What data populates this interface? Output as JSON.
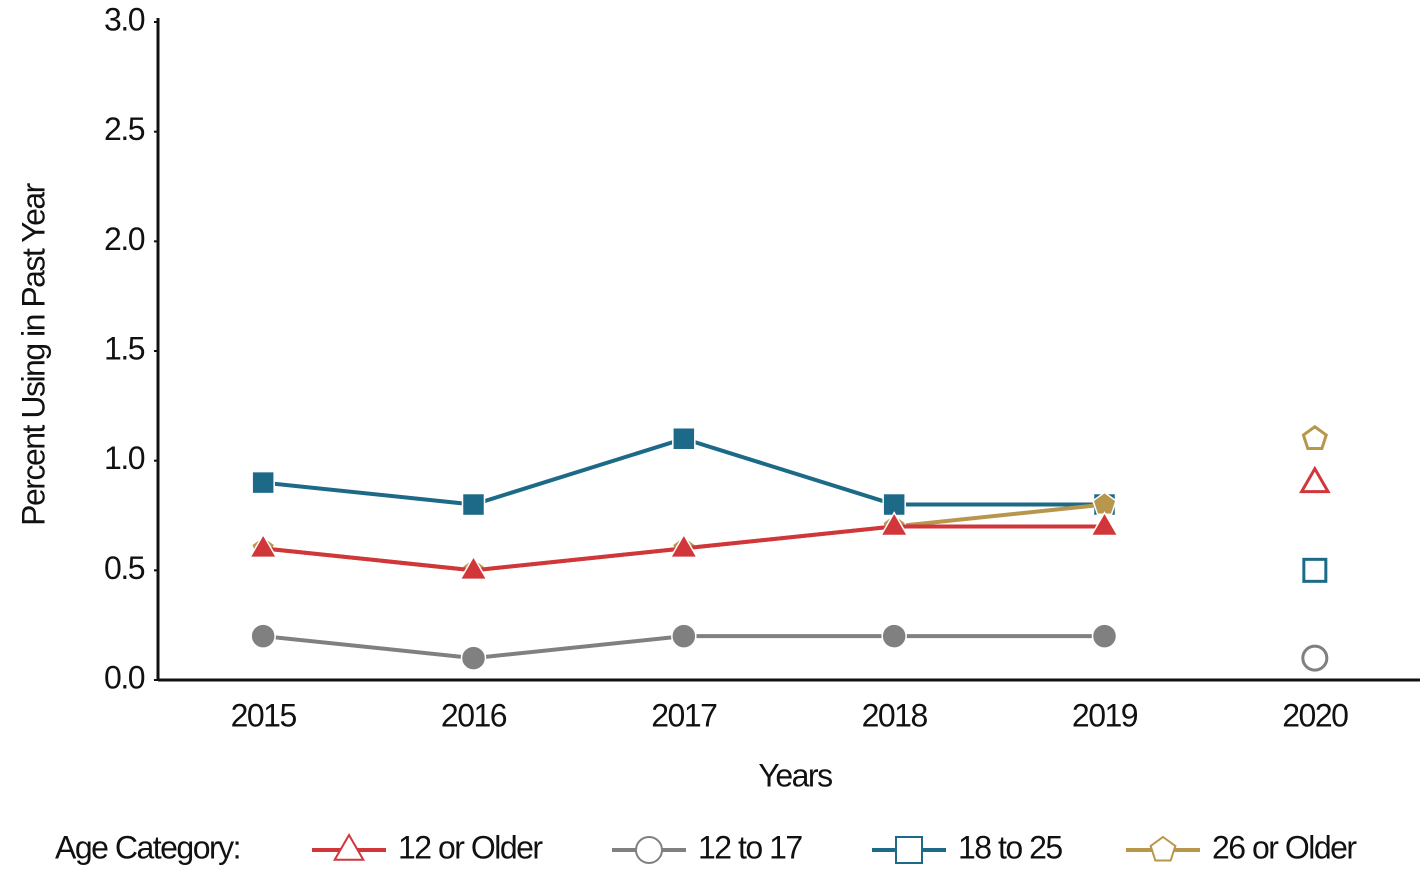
{
  "chart_data": {
    "type": "line",
    "x_label": "Years",
    "y_label": "Percent Using in Past Year",
    "legend_title": "Age Category:",
    "legend": "bottom",
    "grid": false,
    "separate_last_point": true,
    "categories": [
      "2015",
      "2016",
      "2017",
      "2018",
      "2019",
      "2020"
    ],
    "ylim": [
      0,
      3.0
    ],
    "yticks": [
      {
        "value": 0,
        "label": "0.0"
      },
      0.5,
      {
        "value": 1.0,
        "label": "1.0"
      },
      1.5,
      {
        "value": 2.0,
        "label": "2.0"
      },
      2.5,
      {
        "value": 3.0,
        "label": "3.0"
      }
    ],
    "series": [
      {
        "name": "12 or Older",
        "color": "#d1373a",
        "marker": "triangle",
        "values": [
          0.6,
          0.5,
          0.6,
          0.7,
          0.7,
          0.9
        ]
      },
      {
        "name": "12 to 17",
        "color": "#808080",
        "marker": "circle",
        "values": [
          0.2,
          0.1,
          0.2,
          0.2,
          0.2,
          0.1
        ]
      },
      {
        "name": "18 to 25",
        "color": "#1d6a88",
        "marker": "square",
        "values": [
          0.9,
          0.8,
          1.1,
          0.8,
          0.8,
          0.5
        ]
      },
      {
        "name": "26 or Older",
        "color": "#b8964c",
        "marker": "pentagon",
        "values": [
          0.6,
          0.5,
          0.6,
          0.7,
          0.8,
          1.1
        ]
      }
    ]
  }
}
